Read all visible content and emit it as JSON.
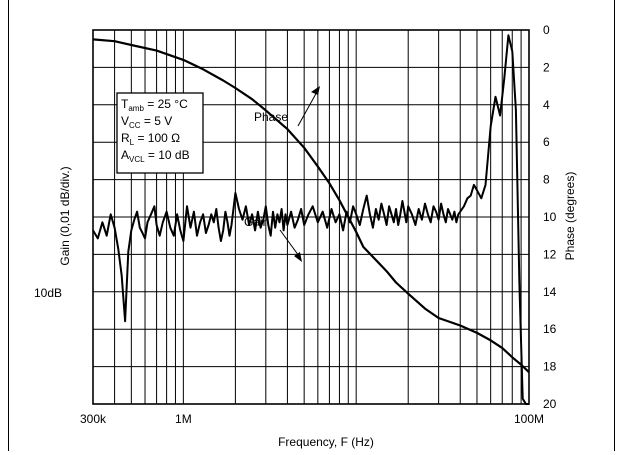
{
  "chart_data": {
    "type": "line",
    "xlabel": "Frequency, F (Hz)",
    "ylabel_left": "Gain (0,01 dB/div.)",
    "ylabel_right": "Phase (degrees)",
    "x_scale": "log",
    "xlim": [
      300000,
      100000000
    ],
    "x_tick_labels": [
      {
        "value": 300000,
        "label": "300k"
      },
      {
        "value": 1000000,
        "label": "1M"
      },
      {
        "value": 100000000,
        "label": "100M"
      }
    ],
    "phase_ylim": [
      0,
      20
    ],
    "phase_inverted": true,
    "phase_ticks": [
      0,
      2,
      4,
      6,
      8,
      10,
      12,
      14,
      16,
      18,
      20
    ],
    "gain_reference_label": "10dB",
    "gain_reference_value": 10,
    "gain_ylim": [
      9.93,
      10.07
    ],
    "gain_divisions": 14,
    "grid": true,
    "conditions": [
      {
        "symbol": "T",
        "sub": "amb",
        "rest": " = 25 °C"
      },
      {
        "symbol": "V",
        "sub": "CC",
        "rest": " =  5 V"
      },
      {
        "symbol": "R",
        "sub": "L",
        "rest": " = 100 Ω"
      },
      {
        "symbol": "A",
        "sub": "VCL",
        "rest": " = 10 dB"
      }
    ],
    "annotations": {
      "phase": "Phase",
      "gain": "Gain"
    },
    "series": [
      {
        "name": "Phase",
        "axis": "right",
        "x": [
          300000,
          400000,
          500000,
          700000,
          1000000,
          1300000,
          1700000,
          2000000,
          2500000,
          3000000,
          4000000,
          5000000,
          6000000,
          7000000,
          8000000,
          9000000,
          10000000,
          11000000,
          13000000,
          15000000,
          17000000,
          20000000,
          25000000,
          30000000,
          40000000,
          50000000,
          60000000,
          70000000,
          80000000,
          90000000,
          100000000
        ],
        "y": [
          0.5,
          0.6,
          0.8,
          1.1,
          1.6,
          2.1,
          2.7,
          3.1,
          3.7,
          4.3,
          5.3,
          6.3,
          7.3,
          8.2,
          9.1,
          10.0,
          10.8,
          11.6,
          12.3,
          12.9,
          13.5,
          14.1,
          14.9,
          15.4,
          15.8,
          16.2,
          16.6,
          17.0,
          17.5,
          17.9,
          18.3
        ]
      },
      {
        "name": "Gain",
        "axis": "left",
        "x": [
          300000,
          320000,
          340000,
          360000,
          380000,
          400000,
          420000,
          440000,
          460000,
          480000,
          500000,
          520000,
          540000,
          560000,
          580000,
          600000,
          620000,
          650000,
          680000,
          700000,
          730000,
          760000,
          800000,
          840000,
          880000,
          920000,
          960000,
          1000000,
          1050000,
          1100000,
          1150000,
          1200000,
          1250000,
          1300000,
          1350000,
          1400000,
          1450000,
          1500000,
          1550000,
          1600000,
          1650000,
          1700000,
          1750000,
          1800000,
          1850000,
          1900000,
          2000000,
          2100000,
          2200000,
          2300000,
          2400000,
          2500000,
          2600000,
          2700000,
          2800000,
          2900000,
          3000000,
          3100000,
          3200000,
          3300000,
          3400000,
          3500000,
          3600000,
          3700000,
          3800000,
          3900000,
          4000000,
          4200000,
          4400000,
          4600000,
          4800000,
          5000000,
          5300000,
          5600000,
          6000000,
          6400000,
          6800000,
          7200000,
          7600000,
          8000000,
          8400000,
          8800000,
          9200000,
          9600000,
          10000000,
          10500000,
          11000000,
          11500000,
          12000000,
          12500000,
          13000000,
          13500000,
          14000000,
          14500000,
          15000000,
          15500000,
          16000000,
          16500000,
          17000000,
          17500000,
          18000000,
          18500000,
          19000000,
          19500000,
          20000000,
          21000000,
          22000000,
          23000000,
          24000000,
          25000000,
          26000000,
          27000000,
          28000000,
          29000000,
          30000000,
          31000000,
          32000000,
          33000000,
          34000000,
          35000000,
          36000000,
          37000000,
          38000000,
          39000000,
          40000000,
          42000000,
          44000000,
          46000000,
          48000000,
          50000000,
          53000000,
          56000000,
          60000000,
          64000000,
          68000000,
          72000000,
          76000000,
          80000000,
          84000000,
          88000000,
          92000000,
          96000000,
          100000000
        ],
        "y": [
          9.995,
          9.992,
          9.998,
          9.993,
          10.001,
          9.996,
          9.988,
          9.978,
          9.961,
          9.987,
          9.995,
          9.999,
          10.002,
          9.996,
          9.994,
          9.992,
          9.998,
          10.001,
          10.004,
          9.997,
          9.993,
          9.998,
          10.002,
          9.996,
          9.993,
          10.001,
          9.995,
          9.991,
          10.004,
          9.996,
          10.002,
          9.993,
          9.998,
          10.001,
          9.994,
          9.997,
          10.001,
          9.998,
          10.003,
          9.996,
          9.991,
          9.995,
          10.002,
          9.998,
          9.993,
          9.997,
          10.009,
          10.003,
          9.999,
          10.004,
          9.997,
          10.001,
          9.995,
          10.002,
          9.996,
          9.999,
          10.004,
          9.997,
          9.993,
          10.002,
          9.996,
          10.001,
          9.998,
          10.003,
          9.995,
          10.001,
          9.997,
          10.002,
          9.996,
          9.999,
          10.003,
          9.997,
          10.001,
          10.004,
          9.998,
          10.002,
          9.996,
          10.003,
          9.998,
          10.001,
          9.995,
          10.002,
          9.998,
          10.004,
          10.001,
          9.997,
          10.003,
          10.008,
          10.001,
          9.996,
          10.003,
          9.999,
          10.005,
          10.001,
          9.997,
          10.004,
          10.001,
          9.998,
          10.003,
          9.997,
          10.001,
          10.006,
          10.002,
          9.998,
          10.004,
          10.001,
          9.997,
          10.003,
          9.999,
          10.005,
          10.001,
          9.998,
          10.004,
          10.002,
          9.999,
          10.005,
          10.001,
          9.998,
          10.003,
          10.001,
          9.999,
          10.002,
          9.998,
          10.001,
          10.002,
          10.004,
          10.007,
          10.008,
          10.012,
          10.01,
          10.007,
          10.012,
          10.034,
          10.045,
          10.038,
          10.052,
          10.068,
          10.062,
          10.04,
          9.975,
          9.932,
          9.93,
          9.93
        ]
      }
    ]
  }
}
